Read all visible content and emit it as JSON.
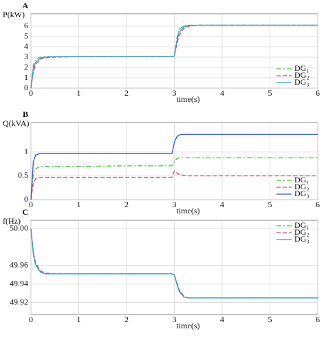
{
  "chart_data": [
    {
      "type": "line",
      "title": "A",
      "ylabel": "P(kW)",
      "xlabel": "time(s)",
      "x": [
        0,
        0.05,
        0.1,
        0.2,
        0.3,
        0.5,
        1,
        2,
        2.95,
        3,
        3.05,
        3.1,
        3.2,
        3.3,
        3.5,
        4,
        5,
        6
      ],
      "xlim": [
        0,
        6
      ],
      "xticks": [
        0,
        1,
        2,
        3,
        4,
        5,
        6
      ],
      "ylim": [
        0,
        7.2
      ],
      "yticks": [
        0,
        1,
        2,
        3,
        4,
        5,
        6
      ],
      "grid": true,
      "legend": "lower right",
      "series": [
        {
          "name": "DG₁",
          "color": "#33cc33",
          "style": "dashdot",
          "values": [
            0,
            2.3,
            2.8,
            3.0,
            3.05,
            3.05,
            3.05,
            3.05,
            3.05,
            3.1,
            4.8,
            5.7,
            6.05,
            6.1,
            6.1,
            6.1,
            6.1,
            6.1
          ]
        },
        {
          "name": "DG₂",
          "color": "#e0407a",
          "style": "dashed",
          "values": [
            0,
            1.6,
            2.3,
            2.8,
            2.95,
            3.0,
            3.05,
            3.05,
            3.05,
            3.1,
            4.2,
            5.1,
            5.8,
            6.0,
            6.1,
            6.1,
            6.1,
            6.1
          ]
        },
        {
          "name": "DG₃",
          "color": "#3399cc",
          "style": "solid",
          "values": [
            0,
            1.9,
            2.5,
            2.9,
            3.0,
            3.05,
            3.05,
            3.05,
            3.05,
            3.1,
            4.5,
            5.4,
            5.95,
            6.05,
            6.1,
            6.1,
            6.1,
            6.1
          ]
        }
      ]
    },
    {
      "type": "line",
      "title": "B",
      "ylabel": "Q(kVA)",
      "xlabel": "time(s)",
      "x": [
        0,
        0.05,
        0.1,
        0.2,
        0.3,
        0.5,
        1,
        2,
        2.95,
        3,
        3.05,
        3.1,
        3.2,
        3.3,
        3.5,
        4,
        5,
        6
      ],
      "xlim": [
        0,
        6
      ],
      "xticks": [
        0,
        1,
        2,
        3,
        4,
        5,
        6
      ],
      "ylim": [
        0,
        1.62
      ],
      "yticks": [
        0,
        0.5,
        1
      ],
      "grid": true,
      "legend": "lower right",
      "series": [
        {
          "name": "DG₁",
          "color": "#33cc33",
          "style": "dashdot",
          "values": [
            0,
            0.55,
            0.65,
            0.7,
            0.7,
            0.7,
            0.7,
            0.71,
            0.71,
            0.8,
            0.86,
            0.88,
            0.88,
            0.88,
            0.88,
            0.88,
            0.88,
            0.88
          ]
        },
        {
          "name": "DG₂",
          "color": "#e0407a",
          "style": "dashed",
          "values": [
            0,
            0.35,
            0.44,
            0.47,
            0.47,
            0.47,
            0.47,
            0.47,
            0.47,
            0.6,
            0.56,
            0.53,
            0.51,
            0.5,
            0.5,
            0.5,
            0.5,
            0.5
          ]
        },
        {
          "name": "DG₃",
          "color": "#3355cc",
          "style": "solid",
          "values": [
            0,
            0.8,
            0.94,
            0.97,
            0.97,
            0.97,
            0.97,
            0.97,
            0.97,
            1.2,
            1.32,
            1.36,
            1.37,
            1.37,
            1.37,
            1.37,
            1.37,
            1.37
          ]
        }
      ]
    },
    {
      "type": "line",
      "title": "C",
      "ylabel": "f(Hz)",
      "xlabel": "time(s)",
      "x": [
        0,
        0.05,
        0.1,
        0.2,
        0.3,
        0.5,
        1,
        2,
        2.95,
        3,
        3.05,
        3.1,
        3.2,
        3.3,
        3.5,
        4,
        5,
        6
      ],
      "xlim": [
        0,
        6
      ],
      "xticks": [
        0,
        1,
        2,
        3,
        4,
        5,
        6
      ],
      "ylim": [
        49.907,
        50.009
      ],
      "yticks": [
        {
          "value": 50,
          "label": "50.00"
        },
        49.96,
        49.94,
        49.92
      ],
      "grid": true,
      "legend": "upper right",
      "series": [
        {
          "name": "DG₁",
          "color": "#33cc33",
          "style": "dashdot",
          "values": [
            50.0,
            49.972,
            49.96,
            49.953,
            49.951,
            49.951,
            49.951,
            49.951,
            49.951,
            49.95,
            49.94,
            49.932,
            49.926,
            49.925,
            49.925,
            49.925,
            49.925,
            49.925
          ]
        },
        {
          "name": "DG₂",
          "color": "#e0407a",
          "style": "dashed",
          "values": [
            50.0,
            49.975,
            49.963,
            49.954,
            49.952,
            49.951,
            49.951,
            49.951,
            49.951,
            49.95,
            49.942,
            49.934,
            49.927,
            49.925,
            49.925,
            49.925,
            49.925,
            49.925
          ]
        },
        {
          "name": "DG₃",
          "color": "#3399cc",
          "style": "solid",
          "values": [
            50.0,
            49.973,
            49.961,
            49.953,
            49.951,
            49.951,
            49.951,
            49.951,
            49.951,
            49.95,
            49.941,
            49.933,
            49.926,
            49.925,
            49.925,
            49.925,
            49.925,
            49.925
          ]
        }
      ]
    }
  ]
}
